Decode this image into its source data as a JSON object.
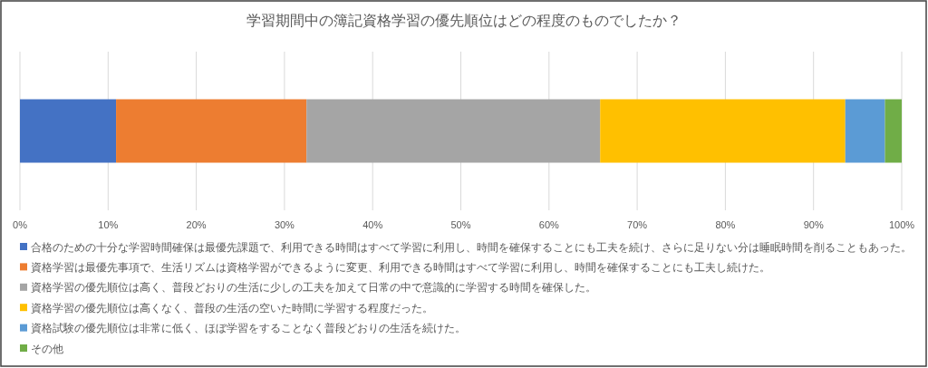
{
  "chart_data": {
    "type": "bar",
    "orientation": "horizontal",
    "stacked": true,
    "title": "学習期間中の簿記資格学習の優先順位はどの程度のものでしたか？",
    "categories": [
      null
    ],
    "series": [
      {
        "name": "合格のための十分な学習時間確保は最優先課題で、利用できる時間はすべて学習に利用し、時間を確保することにも工夫を続け、さらに足りない分は睡眠時間を削ることもあった。",
        "color": "#4472c4",
        "values": [
          10.9
        ]
      },
      {
        "name": "資格学習は最優先事項で、生活リズムは資格学習ができるように変更、利用できる時間はすべて学習に利用し、時間を確保することにも工夫し続けた。",
        "color": "#ed7d31",
        "values": [
          21.6
        ]
      },
      {
        "name": "資格学習の優先順位は高く、普段どおりの生活に少しの工夫を加えて日常の中で意識的に学習する時間を確保した。",
        "color": "#a5a5a5",
        "values": [
          33.3
        ]
      },
      {
        "name": "資格学習の優先順位は高くなく、普段の生活の空いた時間に学習する程度だった。",
        "color": "#ffc000",
        "values": [
          27.8
        ]
      },
      {
        "name": "資格試験の優先順位は非常に低く、ほぼ学習をすることなく普段どおりの生活を続けた。",
        "color": "#5b9bd5",
        "values": [
          4.5
        ]
      },
      {
        "name": "その他",
        "color": "#70ad47",
        "values": [
          1.9
        ]
      }
    ],
    "xlim": [
      0,
      100
    ],
    "xticks": [
      {
        "value": 0,
        "label": "0%"
      },
      {
        "value": 10,
        "label": "10%"
      },
      {
        "value": 20,
        "label": "20%"
      },
      {
        "value": 30,
        "label": "30%"
      },
      {
        "value": 40,
        "label": "40%"
      },
      {
        "value": 50,
        "label": "50%"
      },
      {
        "value": 60,
        "label": "60%"
      },
      {
        "value": 70,
        "label": "70%"
      },
      {
        "value": 80,
        "label": "80%"
      },
      {
        "value": 90,
        "label": "90%"
      },
      {
        "value": 100,
        "label": "100%"
      }
    ],
    "grid": "x",
    "legend": "bottom"
  }
}
